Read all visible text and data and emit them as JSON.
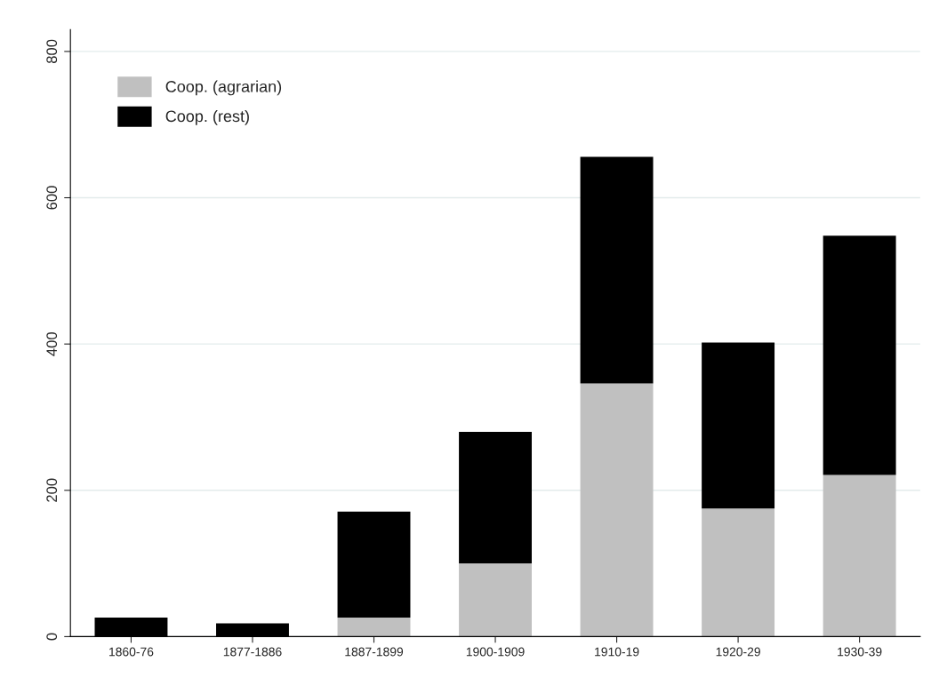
{
  "chart_data": {
    "type": "bar",
    "stacked": true,
    "categories": [
      "1860-76",
      "1877-1886",
      "1887-1899",
      "1900-1909",
      "1910-19",
      "1920-29",
      "1930-39"
    ],
    "series": [
      {
        "name": "Coop. (agrarian)",
        "color": "#c0c0c0",
        "values": [
          0,
          0,
          26,
          100,
          346,
          175,
          221
        ]
      },
      {
        "name": "Coop. (rest)",
        "color": "#000000",
        "values": [
          26,
          18,
          145,
          180,
          310,
          227,
          327
        ]
      }
    ],
    "ylim": [
      0,
      830
    ],
    "yticks": [
      0,
      200,
      400,
      600,
      800
    ],
    "grid": "y",
    "legend": "top left"
  }
}
